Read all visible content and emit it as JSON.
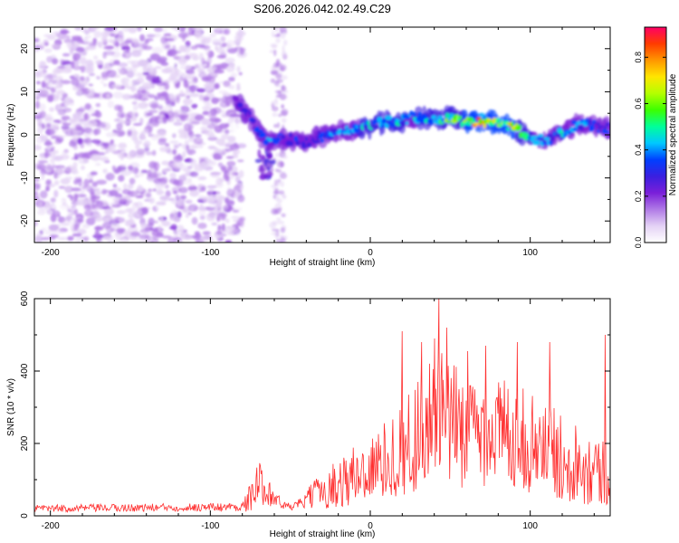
{
  "figure_title": "S206.2026.042.02.49.C29",
  "chart_data": [
    {
      "type": "heatmap",
      "title": "S206.2026.042.02.49.C29",
      "xlabel": "Height of straight line (km)",
      "ylabel": "Frequency (Hz)",
      "xlim": [
        -210,
        150
      ],
      "ylim": [
        -25,
        25
      ],
      "xticks": [
        -200,
        -100,
        0,
        100
      ],
      "yticks": [
        -20,
        -10,
        0,
        10,
        20
      ],
      "colorbar": {
        "label": "Normalized spectral amplitude",
        "range": [
          0,
          0.93
        ],
        "ticks": [
          0.0,
          0.2,
          0.4,
          0.6,
          0.8
        ],
        "tick_labels": [
          "0.0",
          "0.2",
          "0.4",
          "0.6",
          "0.8"
        ],
        "colormap": [
          "#ffffff",
          "#e4d2f5",
          "#b07ae6",
          "#7a1fd9",
          "#3a1fe0",
          "#0040ff",
          "#00c8ff",
          "#00ff9a",
          "#3cff00",
          "#b4ff00",
          "#ffe600",
          "#ff9600",
          "#ff3c00",
          "#ff0066"
        ]
      },
      "ridge": {
        "x": [
          -85,
          -75,
          -70,
          -65,
          -60,
          -55,
          -50,
          -45,
          -40,
          -35,
          -30,
          -25,
          -20,
          -15,
          -10,
          -5,
          0,
          5,
          10,
          15,
          20,
          25,
          30,
          35,
          40,
          45,
          50,
          55,
          60,
          65,
          70,
          75,
          80,
          85,
          90,
          95,
          100,
          105,
          110,
          115,
          120,
          125,
          130,
          135,
          140,
          145,
          150
        ],
        "freq": [
          8,
          4,
          1,
          -1,
          -1.5,
          -1,
          -1,
          -1.5,
          -2,
          -1,
          -0.5,
          0,
          0.5,
          1,
          1,
          1.5,
          2,
          2.5,
          3,
          3,
          3,
          4,
          4,
          4,
          3.5,
          3.5,
          4,
          3.5,
          3,
          3,
          3,
          3,
          3,
          2.5,
          1.5,
          0.5,
          -0.5,
          -1,
          -1.5,
          -0.5,
          0.5,
          1.5,
          2.5,
          2.5,
          2,
          1.5,
          1.5
        ],
        "amplitude": [
          0.28,
          0.32,
          0.38,
          0.42,
          0.38,
          0.33,
          0.3,
          0.32,
          0.38,
          0.3,
          0.33,
          0.38,
          0.43,
          0.47,
          0.47,
          0.5,
          0.5,
          0.5,
          0.5,
          0.5,
          0.5,
          0.47,
          0.5,
          0.53,
          0.55,
          0.58,
          0.62,
          0.66,
          0.7,
          0.8,
          0.9,
          0.85,
          0.7,
          0.74,
          0.72,
          0.6,
          0.5,
          0.45,
          0.42,
          0.45,
          0.5,
          0.45,
          0.42,
          0.4,
          0.38,
          0.36,
          0.34
        ]
      },
      "noise_region": {
        "x_range": [
          -210,
          -80
        ],
        "amplitude_level": 0.12
      },
      "side_branch": {
        "x_range": [
          -70,
          -60
        ],
        "freq_range": [
          -10,
          0
        ]
      }
    },
    {
      "type": "line",
      "xlabel": "Height of straight line (km)",
      "ylabel": "SNR (10 * v/v)",
      "xlim": [
        -210,
        150
      ],
      "ylim": [
        0,
        600
      ],
      "xticks": [
        -200,
        -100,
        0,
        100
      ],
      "yticks": [
        0,
        200,
        400,
        600
      ],
      "series": [
        {
          "name": "SNR",
          "color": "#ff3030",
          "envelope": {
            "x": [
              -210,
              -80,
              -75,
              -70,
              -65,
              -60,
              -55,
              -50,
              -45,
              -40,
              -35,
              -30,
              -25,
              -20,
              -15,
              -10,
              -5,
              0,
              5,
              10,
              15,
              20,
              25,
              30,
              35,
              40,
              45,
              50,
              55,
              60,
              65,
              70,
              75,
              80,
              85,
              90,
              95,
              100,
              105,
              110,
              115,
              120,
              125,
              130,
              135,
              140,
              145,
              150
            ],
            "base": [
              20,
              25,
              50,
              90,
              80,
              50,
              30,
              25,
              30,
              45,
              60,
              70,
              80,
              90,
              100,
              110,
              120,
              130,
              140,
              155,
              170,
              180,
              200,
              230,
              240,
              250,
              260,
              250,
              245,
              240,
              235,
              230,
              225,
              240,
              230,
              220,
              215,
              200,
              190,
              180,
              170,
              160,
              160,
              150,
              140,
              130,
              120,
              110
            ],
            "amplitude": [
              10,
              12,
              40,
              60,
              50,
              30,
              12,
              10,
              15,
              25,
              40,
              50,
              60,
              70,
              80,
              90,
              90,
              90,
              100,
              110,
              120,
              130,
              150,
              170,
              180,
              200,
              200,
              180,
              170,
              160,
              150,
              150,
              140,
              150,
              150,
              140,
              140,
              140,
              130,
              130,
              130,
              120,
              120,
              110,
              110,
              100,
              100,
              90
            ]
          },
          "peaks": [
            {
              "x": 20,
              "y": 510
            },
            {
              "x": 32,
              "y": 480
            },
            {
              "x": 40,
              "y": 490
            },
            {
              "x": 43,
              "y": 600
            },
            {
              "x": 48,
              "y": 520
            },
            {
              "x": 61,
              "y": 455
            },
            {
              "x": 72,
              "y": 470
            },
            {
              "x": 92,
              "y": 480
            },
            {
              "x": 112,
              "y": 480
            },
            {
              "x": 147,
              "y": 500
            }
          ]
        }
      ]
    }
  ]
}
